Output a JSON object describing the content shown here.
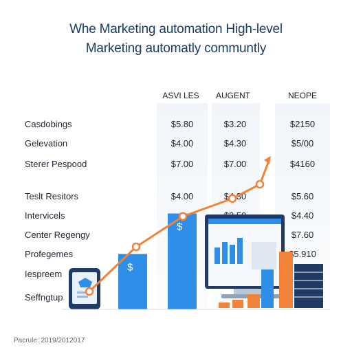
{
  "chart_data": {
    "type": "bar",
    "title": "Whe Marketing automation High-level",
    "subtitle": "Marketing automatly communtly",
    "columns": [
      "ASVI LES",
      "AUGENT",
      "NEOPE"
    ],
    "rows": [
      {
        "label": "Casdobings",
        "values": [
          "$5.80",
          "$3.20",
          "$2150"
        ]
      },
      {
        "label": "Gelevation",
        "values": [
          "$4.00",
          "$4.30",
          "$5/00"
        ]
      },
      {
        "label": "Sterer Pespood",
        "values": [
          "$7.00",
          "$7.00",
          "$4160"
        ]
      },
      {
        "label": "Teslt Resitors",
        "values": [
          "$4.00",
          "$4.30",
          "$5.60"
        ]
      },
      {
        "label": "Intervicels",
        "values": [
          "",
          "$3.50",
          "$4.40"
        ]
      },
      {
        "label": "Center Regengy",
        "values": [
          "",
          "",
          "$7.60"
        ]
      },
      {
        "label": "Profegemes",
        "values": [
          "",
          "",
          "$5.910"
        ]
      },
      {
        "label": "Iespreem",
        "values": [
          "",
          "",
          ""
        ]
      },
      {
        "label": "Seffngtup",
        "values": [
          "",
          "",
          ""
        ]
      }
    ],
    "bars": [
      {
        "value": 52,
        "color": "#2f8ee8",
        "label": "$"
      },
      {
        "value": 90,
        "color": "#2f8ee8",
        "label": "$"
      }
    ],
    "trend_values": [
      10,
      35,
      52,
      62,
      70,
      82
    ],
    "grid": false,
    "legend": "none"
  },
  "colors": {
    "title": "#1b3b63",
    "blue": "#2f8ee8",
    "orange": "#f0823a",
    "navy": "#1f3a64"
  },
  "footnote": "Pacrule: 2019/2012017"
}
